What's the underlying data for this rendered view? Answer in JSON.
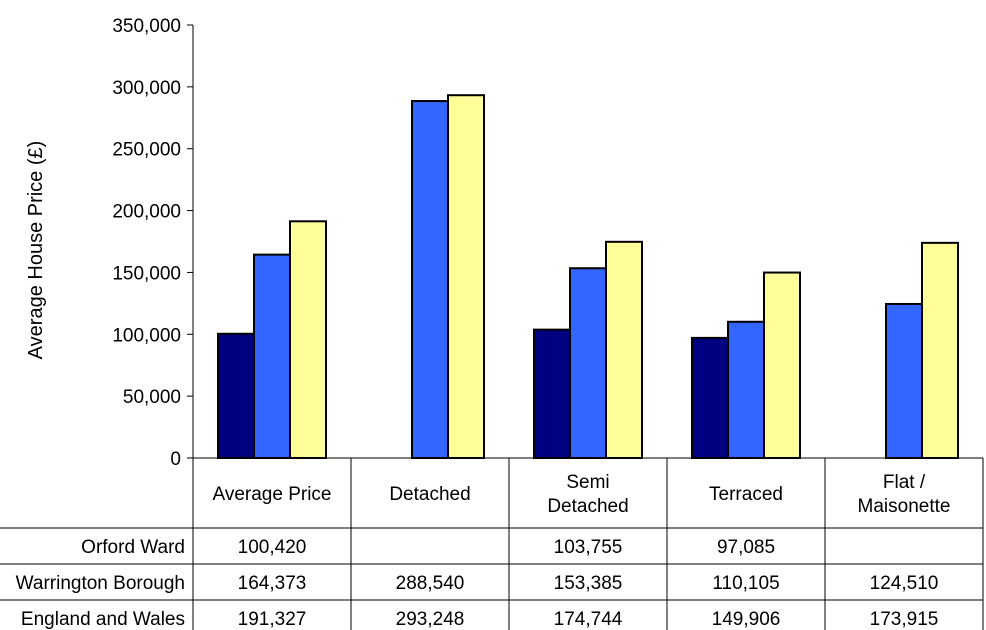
{
  "chart_data": {
    "type": "bar",
    "ylabel": "Average House Price (£)",
    "ylim": [
      0,
      350000
    ],
    "yticks": [
      "0",
      "50,000",
      "100,000",
      "150,000",
      "200,000",
      "250,000",
      "300,000",
      "350,000"
    ],
    "categories": [
      [
        "Average Price"
      ],
      [
        "Detached"
      ],
      [
        "Semi",
        "Detached"
      ],
      [
        "Terraced"
      ],
      [
        "Flat /",
        "Maisonette"
      ]
    ],
    "series": [
      {
        "name": "Orford Ward",
        "color": "#000080",
        "values": [
          100420,
          null,
          103755,
          97085,
          null
        ]
      },
      {
        "name": "Warrington Borough",
        "color": "#3366FF",
        "values": [
          164373,
          288540,
          153385,
          110105,
          124510
        ]
      },
      {
        "name": "England and Wales",
        "color": "#FFFF99",
        "values": [
          191327,
          293248,
          174744,
          149906,
          173915
        ]
      }
    ],
    "table": {
      "row_labels": [
        "Orford Ward",
        "Warrington Borough",
        "England and Wales"
      ],
      "rows": [
        [
          "100,420",
          "",
          "103,755",
          "97,085",
          ""
        ],
        [
          "164,373",
          "288,540",
          "153,385",
          "110,105",
          "124,510"
        ],
        [
          "191,327",
          "293,248",
          "174,744",
          "149,906",
          "173,915"
        ]
      ]
    },
    "grid": false,
    "legend": "table"
  }
}
